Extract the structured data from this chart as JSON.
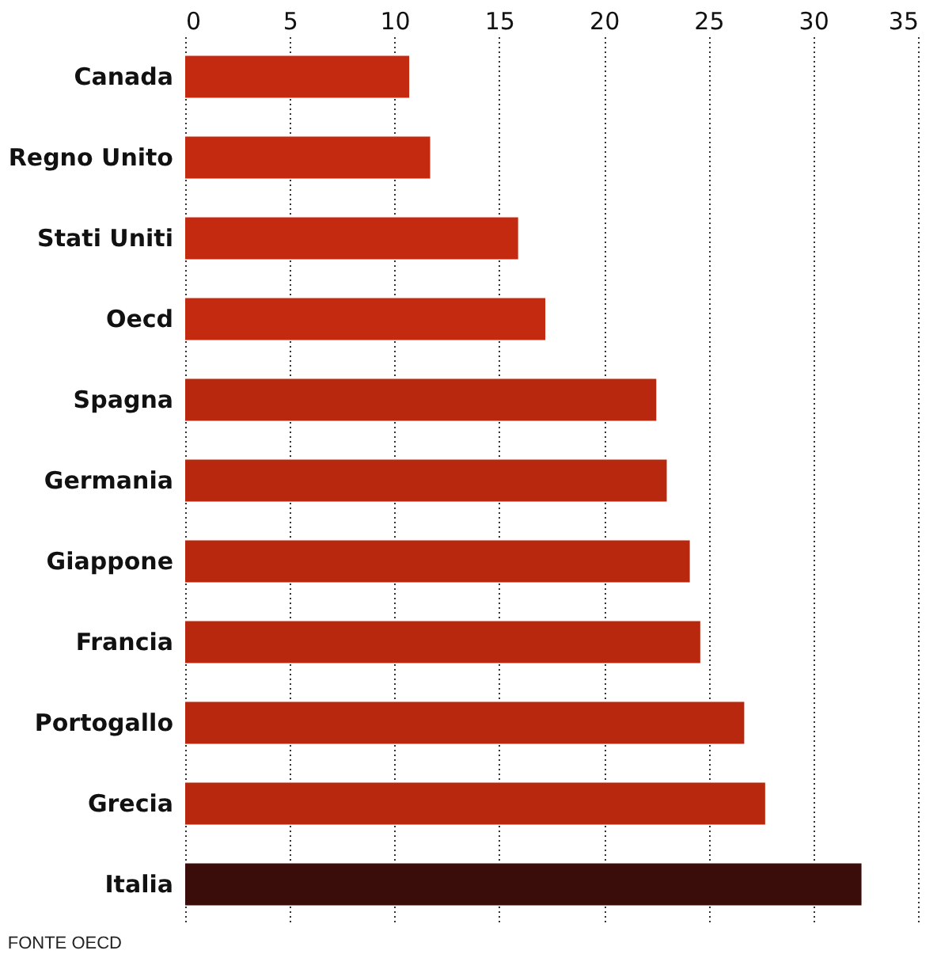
{
  "chart_data": {
    "type": "bar",
    "orientation": "horizontal",
    "categories": [
      "Canada",
      "Regno Unito",
      "Stati Uniti",
      "Oecd",
      "Spagna",
      "Germania",
      "Giappone",
      "Francia",
      "Portogallo",
      "Grecia",
      "Italia"
    ],
    "values": [
      10.7,
      11.7,
      15.9,
      17.2,
      22.5,
      23.0,
      24.1,
      24.6,
      26.7,
      27.7,
      32.3
    ],
    "colors": [
      "#c42a10",
      "#c42a10",
      "#c42a10",
      "#c42a10",
      "#b8280f",
      "#b8280f",
      "#b8280f",
      "#b8280f",
      "#b8280f",
      "#b8280f",
      "#3a0c0a"
    ],
    "xlim": [
      0,
      35
    ],
    "xticks": [
      0,
      5,
      10,
      15,
      20,
      25,
      30,
      35
    ],
    "grid": "x",
    "annotations": [
      "FONTE OECD"
    ]
  }
}
